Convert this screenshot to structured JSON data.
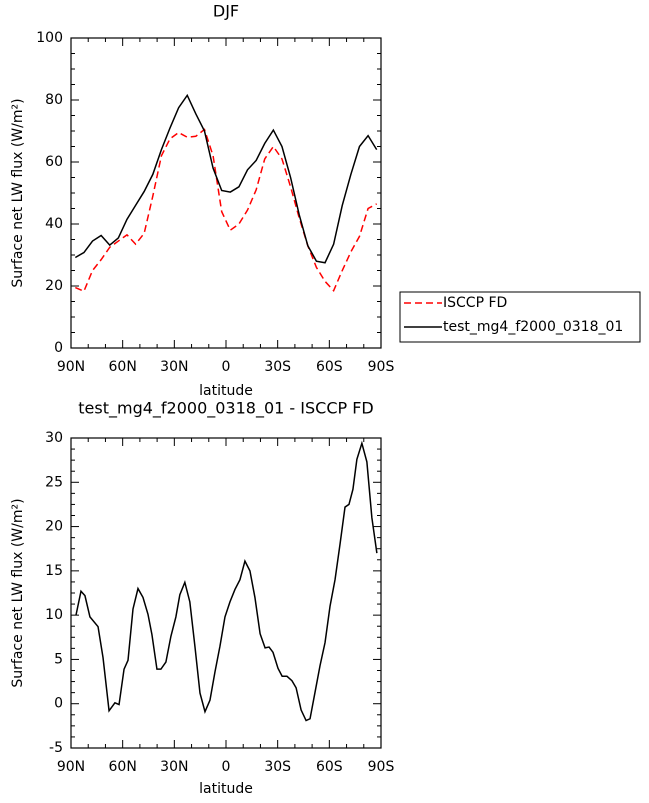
{
  "chart_data": [
    {
      "type": "line",
      "title": "DJF",
      "ylabel": "Surface net LW flux (W/m²)",
      "xlabel": "latitude",
      "x": [
        87.5,
        82.5,
        77.5,
        72.5,
        67.5,
        62.5,
        57.5,
        52.5,
        47.5,
        42.5,
        37.5,
        32.5,
        27.5,
        22.5,
        17.5,
        12.5,
        7.5,
        2.5,
        -2.5,
        -7.5,
        -12.5,
        -17.5,
        -22.5,
        -27.5,
        -32.5,
        -37.5,
        -42.5,
        -47.5,
        -52.5,
        -57.5,
        -62.5,
        -67.5,
        -72.5,
        -77.5,
        -82.5,
        -87.5
      ],
      "series": [
        {
          "name": "ISCCP FD",
          "color": "#ff0000",
          "dash": "dashed",
          "values": [
            19.5,
            18.3,
            25,
            28.5,
            32.5,
            34.5,
            36.5,
            33.5,
            37,
            49,
            62,
            67.5,
            69.5,
            68,
            68.3,
            70.5,
            62,
            44,
            38,
            40,
            44.5,
            51,
            61,
            65,
            61,
            52,
            42,
            33,
            26,
            21.5,
            18.5,
            25,
            31,
            36,
            45,
            46.5
          ]
        },
        {
          "name": "test_mg4_f2000_0318_01",
          "color": "#000000",
          "dash": "solid",
          "values": [
            29.2,
            30.8,
            34.5,
            36.3,
            33.2,
            35.5,
            41.5,
            46,
            50.5,
            56,
            64,
            71,
            77.5,
            81.5,
            75.5,
            70,
            58,
            50.8,
            50.3,
            52,
            57.5,
            60.5,
            66,
            70.3,
            65,
            55,
            43,
            33,
            28,
            27.5,
            33.5,
            46,
            56,
            65,
            68.5,
            64
          ]
        }
      ],
      "xlim": [
        90,
        -90
      ],
      "xticks": [
        {
          "value": 90,
          "label": "90N"
        },
        {
          "value": 60,
          "label": "60N"
        },
        {
          "value": 30,
          "label": "30N"
        },
        0,
        {
          "value": -30,
          "label": "30S"
        },
        {
          "value": -60,
          "label": "60S"
        },
        {
          "value": -90,
          "label": "90S"
        }
      ],
      "ylim": [
        0,
        100
      ],
      "yticks": [
        0,
        20,
        40,
        60,
        80,
        100
      ],
      "legend": "outside-right",
      "grid": false
    },
    {
      "type": "line",
      "title": "test_mg4_f2000_0318_01 - ISCCP FD",
      "ylabel": "Surface net LW flux (W/m²)",
      "xlabel": "latitude",
      "x": [
        87.1,
        84.2,
        81.9,
        79.0,
        74.3,
        71.4,
        67.9,
        64.5,
        62.1,
        59.2,
        56.9,
        54.0,
        51.1,
        48.2,
        45.3,
        43.0,
        40.1,
        37.8,
        34.9,
        32.0,
        29.1,
        26.8,
        23.9,
        21.0,
        18.0,
        15.1,
        12.2,
        9.3,
        6.4,
        3.5,
        0.6,
        -2.3,
        -5.2,
        -8.1,
        -11.0,
        -13.9,
        -16.8,
        -19.8,
        -22.7,
        -25.0,
        -27.3,
        -30.2,
        -32.6,
        -35.4,
        -38.3,
        -40.7,
        -43.6,
        -46.5,
        -48.8,
        -51.7,
        -54.6,
        -57.5,
        -60.4,
        -63.3,
        -66.2,
        -69.1,
        -71.4,
        -73.7,
        -76.0,
        -78.9,
        -81.8,
        -84.7,
        -87.6
      ],
      "values": [
        10,
        12.7,
        12.2,
        9.8,
        8.7,
        5.2,
        -0.8,
        0.1,
        -0.1,
        3.9,
        4.9,
        10.7,
        13,
        12,
        10.1,
        7.8,
        3.9,
        3.9,
        4.7,
        7.6,
        9.8,
        12.3,
        13.7,
        11.5,
        6.4,
        1.2,
        -0.9,
        0.4,
        3.6,
        6.5,
        9.8,
        11.5,
        12.9,
        14.0,
        16.1,
        15,
        12,
        7.9,
        6.3,
        6.4,
        5.8,
        4,
        3.1,
        3.1,
        2.6,
        1.8,
        -0.7,
        -1.9,
        -1.7,
        1.3,
        4.3,
        6.9,
        11,
        14,
        18,
        22.2,
        22.5,
        24.2,
        27.6,
        29.4,
        27.3,
        21,
        17
      ],
      "color": "#000000",
      "xlim": [
        90,
        -90
      ],
      "xticks": [
        {
          "value": 90,
          "label": "90N"
        },
        {
          "value": 60,
          "label": "60N"
        },
        {
          "value": 30,
          "label": "30N"
        },
        0,
        {
          "value": -30,
          "label": "30S"
        },
        {
          "value": -60,
          "label": "60S"
        },
        {
          "value": -90,
          "label": "90S"
        }
      ],
      "ylim": [
        -5,
        30
      ],
      "yticks": [
        -5,
        0,
        5,
        10,
        15,
        20,
        25,
        30
      ],
      "grid": false
    }
  ]
}
